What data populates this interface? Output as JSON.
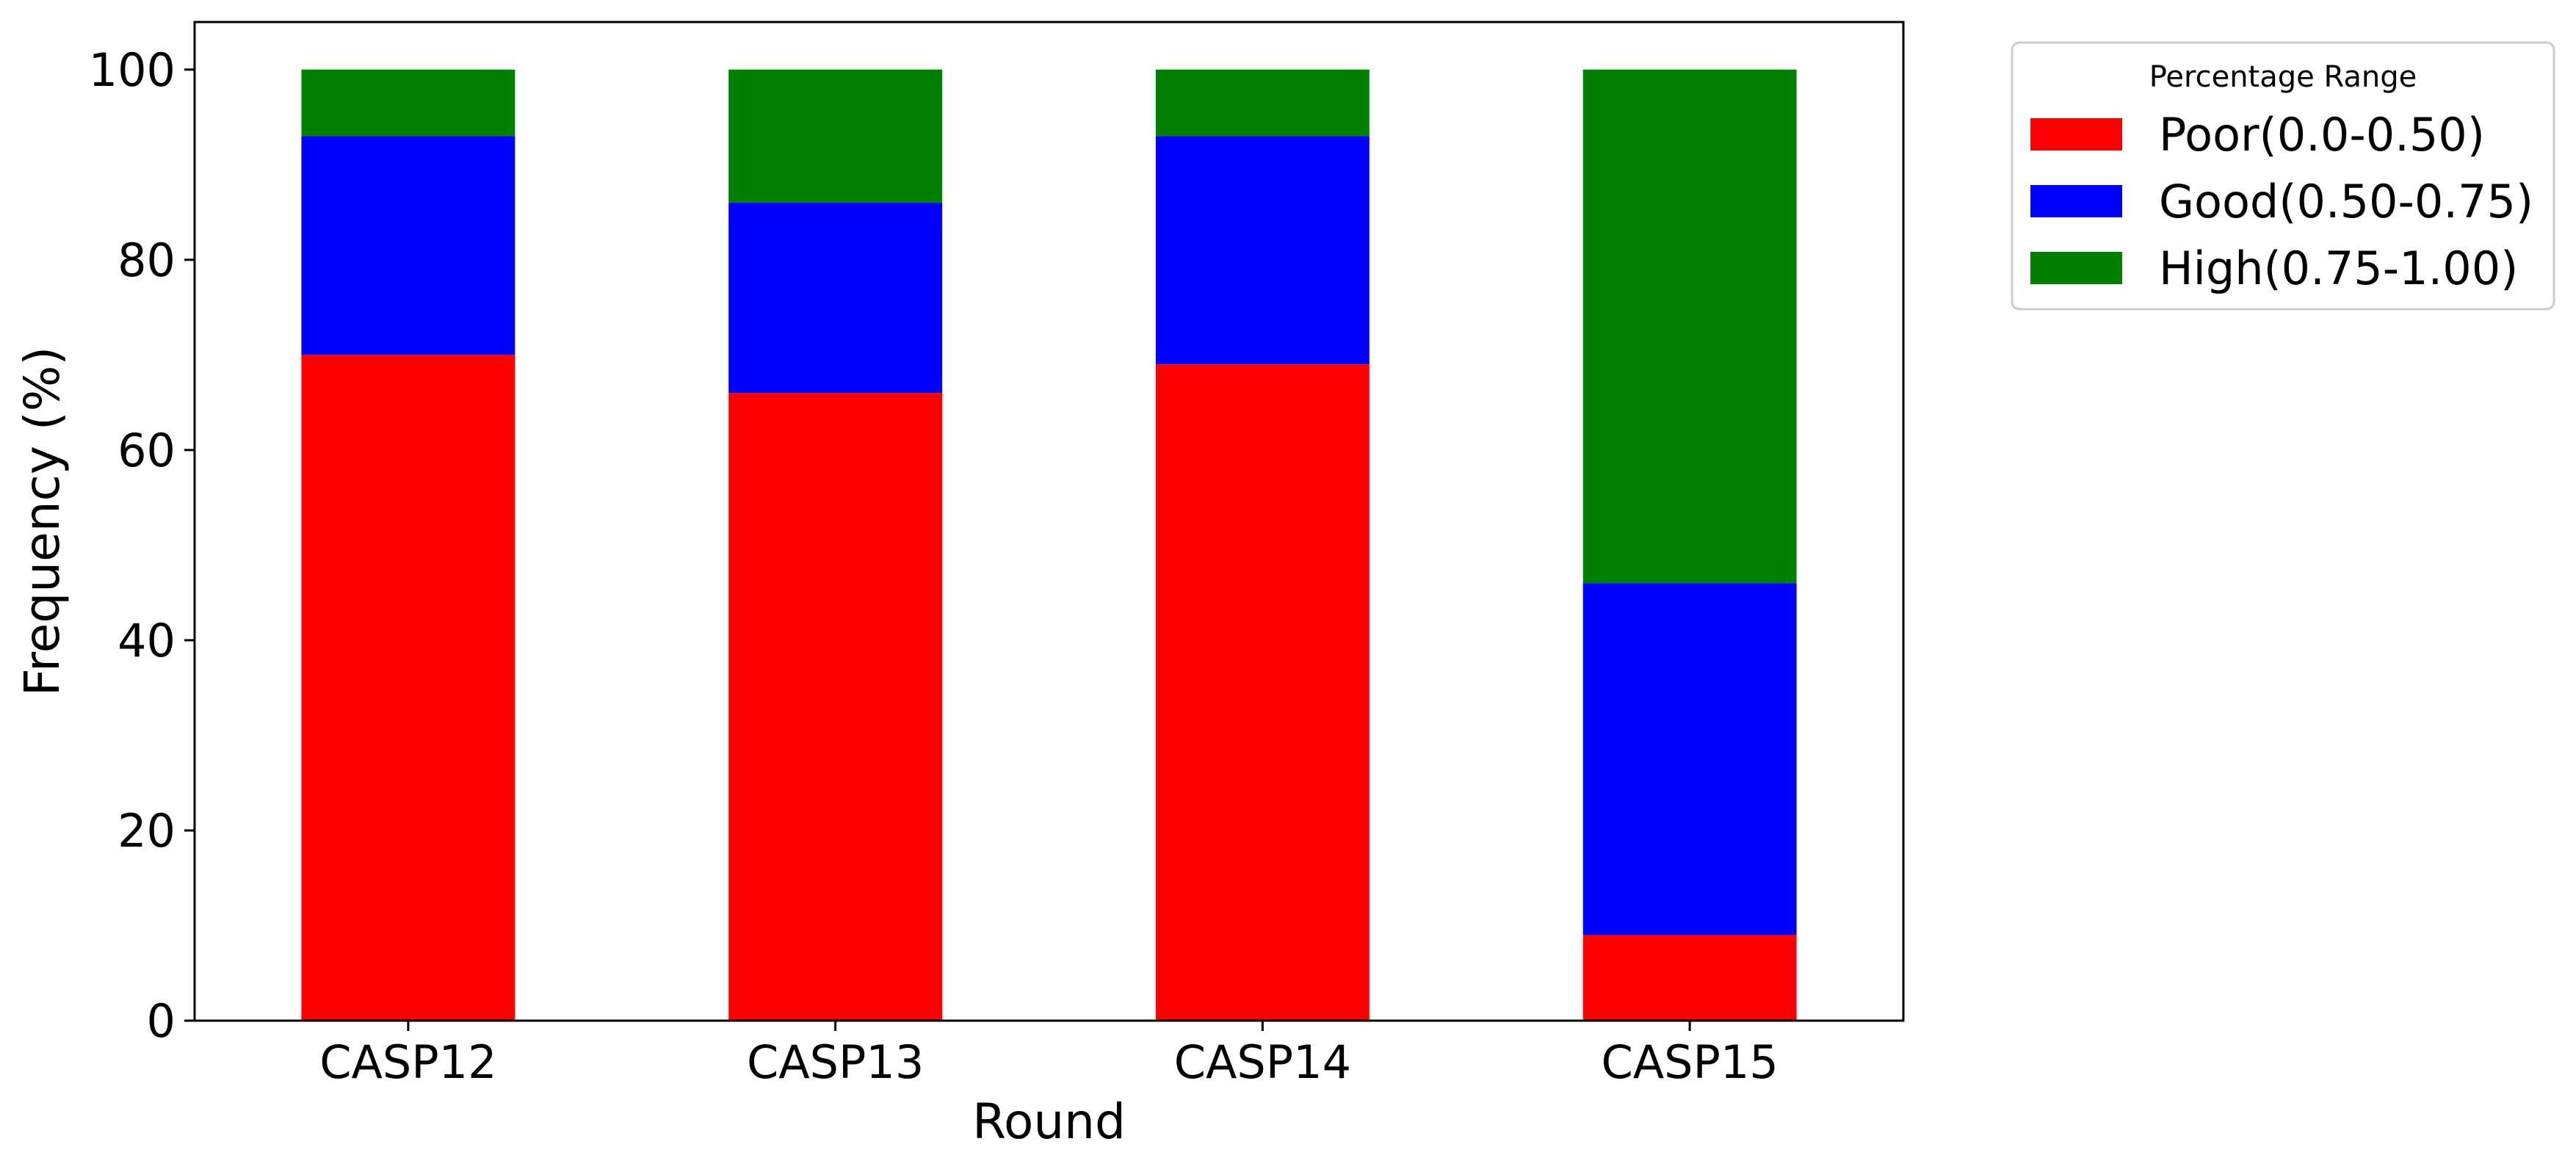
{
  "chart_data": {
    "type": "bar",
    "stacked": true,
    "categories": [
      "CASP12",
      "CASP13",
      "CASP14",
      "CASP15"
    ],
    "series": [
      {
        "name": "Poor(0.0-0.50)",
        "color": "#ff0000",
        "values": [
          70,
          66,
          69,
          9
        ]
      },
      {
        "name": "Good(0.50-0.75)",
        "color": "#0000ff",
        "values": [
          23,
          20,
          24,
          37
        ]
      },
      {
        "name": "High(0.75-1.00)",
        "color": "#008000",
        "values": [
          7,
          14,
          7,
          54
        ]
      }
    ],
    "title": "",
    "xlabel": "Round",
    "ylabel": "Frequency (%)",
    "ylim": [
      0,
      105
    ],
    "yticks": [
      0,
      20,
      40,
      60,
      80,
      100
    ],
    "grid": false,
    "legend": {
      "title": "Percentage Range",
      "placement": "outside-top-right"
    }
  }
}
